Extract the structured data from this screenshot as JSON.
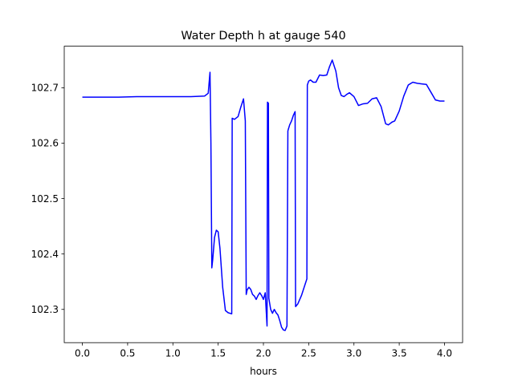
{
  "chart_data": {
    "type": "line",
    "title": "Water Depth h at gauge 540",
    "xlabel": "hours",
    "ylabel": "",
    "xlim": [
      -0.2,
      4.2
    ],
    "ylim": [
      102.24,
      102.775
    ],
    "xticks": [
      0.0,
      0.5,
      1.0,
      1.5,
      2.0,
      2.5,
      3.0,
      3.5,
      4.0
    ],
    "xtick_labels": [
      "0.0",
      "0.5",
      "1.0",
      "1.5",
      "2.0",
      "2.5",
      "3.0",
      "3.5",
      "4.0"
    ],
    "yticks": [
      102.3,
      102.4,
      102.5,
      102.6,
      102.7
    ],
    "ytick_labels": [
      "102.3",
      "102.4",
      "102.5",
      "102.6",
      "102.7"
    ],
    "grid": false,
    "series": [
      {
        "color": "#0000ff",
        "x": [
          0.0,
          0.2,
          0.4,
          0.6,
          0.8,
          1.0,
          1.2,
          1.35,
          1.39,
          1.41,
          1.42,
          1.43,
          1.44,
          1.46,
          1.48,
          1.5,
          1.52,
          1.55,
          1.58,
          1.61,
          1.65,
          1.655,
          1.68,
          1.72,
          1.75,
          1.78,
          1.8,
          1.81,
          1.82,
          1.84,
          1.86,
          1.88,
          1.9,
          1.92,
          1.94,
          1.96,
          1.98,
          2.0,
          2.02,
          2.04,
          2.045,
          2.055,
          2.06,
          2.07,
          2.08,
          2.1,
          2.12,
          2.14,
          2.16,
          2.18,
          2.2,
          2.22,
          2.24,
          2.26,
          2.27,
          2.275,
          2.29,
          2.31,
          2.33,
          2.35,
          2.355,
          2.38,
          2.42,
          2.46,
          2.48,
          2.485,
          2.5,
          2.52,
          2.55,
          2.58,
          2.62,
          2.66,
          2.7,
          2.73,
          2.76,
          2.8,
          2.83,
          2.86,
          2.89,
          2.92,
          2.95,
          3.0,
          3.05,
          3.1,
          3.15,
          3.2,
          3.25,
          3.3,
          3.35,
          3.38,
          3.42,
          3.45,
          3.5,
          3.55,
          3.6,
          3.65,
          3.7,
          3.75,
          3.8,
          3.85,
          3.9,
          3.95,
          4.0
        ],
        "y": [
          102.683,
          102.683,
          102.683,
          102.684,
          102.684,
          102.684,
          102.684,
          102.685,
          102.69,
          102.728,
          102.6,
          102.375,
          102.39,
          102.43,
          102.443,
          102.44,
          102.41,
          102.34,
          102.298,
          102.294,
          102.292,
          102.645,
          102.643,
          102.648,
          102.665,
          102.68,
          102.64,
          102.327,
          102.335,
          102.34,
          102.336,
          102.327,
          102.324,
          102.318,
          102.325,
          102.33,
          102.325,
          102.318,
          102.33,
          102.27,
          102.674,
          102.672,
          102.32,
          102.31,
          102.3,
          102.293,
          102.3,
          102.294,
          102.29,
          102.28,
          102.268,
          102.263,
          102.262,
          102.27,
          102.622,
          102.625,
          102.633,
          102.64,
          102.65,
          102.657,
          102.305,
          102.31,
          102.325,
          102.345,
          102.355,
          102.705,
          102.712,
          102.714,
          102.71,
          102.71,
          102.723,
          102.722,
          102.723,
          102.738,
          102.75,
          102.73,
          102.7,
          102.686,
          102.684,
          102.688,
          102.691,
          102.684,
          102.668,
          102.671,
          102.672,
          102.68,
          102.682,
          102.666,
          102.635,
          102.633,
          102.638,
          102.64,
          102.658,
          102.685,
          102.705,
          102.71,
          102.708,
          102.707,
          102.706,
          102.692,
          102.678,
          102.676,
          102.676
        ]
      }
    ]
  }
}
